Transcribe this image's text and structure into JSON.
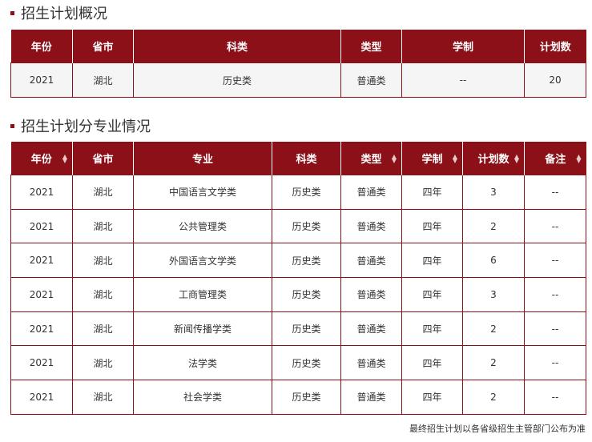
{
  "overview": {
    "title": "招生计划概况",
    "headers": [
      "年份",
      "省市",
      "科类",
      "类型",
      "学制",
      "计划数"
    ],
    "rows": [
      [
        "2021",
        "湖北",
        "历史类",
        "普通类",
        "--",
        "20"
      ]
    ]
  },
  "majors": {
    "title": "招生计划分专业情况",
    "headers": [
      "年份",
      "省市",
      "专业",
      "科类",
      "类型",
      "学制",
      "计划数",
      "备注"
    ],
    "sortable": [
      true,
      false,
      false,
      false,
      true,
      true,
      true,
      true
    ],
    "rows": [
      [
        "2021",
        "湖北",
        "中国语言文学类",
        "历史类",
        "普通类",
        "四年",
        "3",
        "--"
      ],
      [
        "2021",
        "湖北",
        "公共管理类",
        "历史类",
        "普通类",
        "四年",
        "2",
        "--"
      ],
      [
        "2021",
        "湖北",
        "外国语言文学类",
        "历史类",
        "普通类",
        "四年",
        "6",
        "--"
      ],
      [
        "2021",
        "湖北",
        "工商管理类",
        "历史类",
        "普通类",
        "四年",
        "3",
        "--"
      ],
      [
        "2021",
        "湖北",
        "新闻传播学类",
        "历史类",
        "普通类",
        "四年",
        "2",
        "--"
      ],
      [
        "2021",
        "湖北",
        "法学类",
        "历史类",
        "普通类",
        "四年",
        "2",
        "--"
      ],
      [
        "2021",
        "湖北",
        "社会学类",
        "历史类",
        "普通类",
        "四年",
        "2",
        "--"
      ]
    ]
  },
  "footer": "最终招生计划以各省级招生主管部门公布为准",
  "colors": {
    "accent": "#8b1018"
  }
}
